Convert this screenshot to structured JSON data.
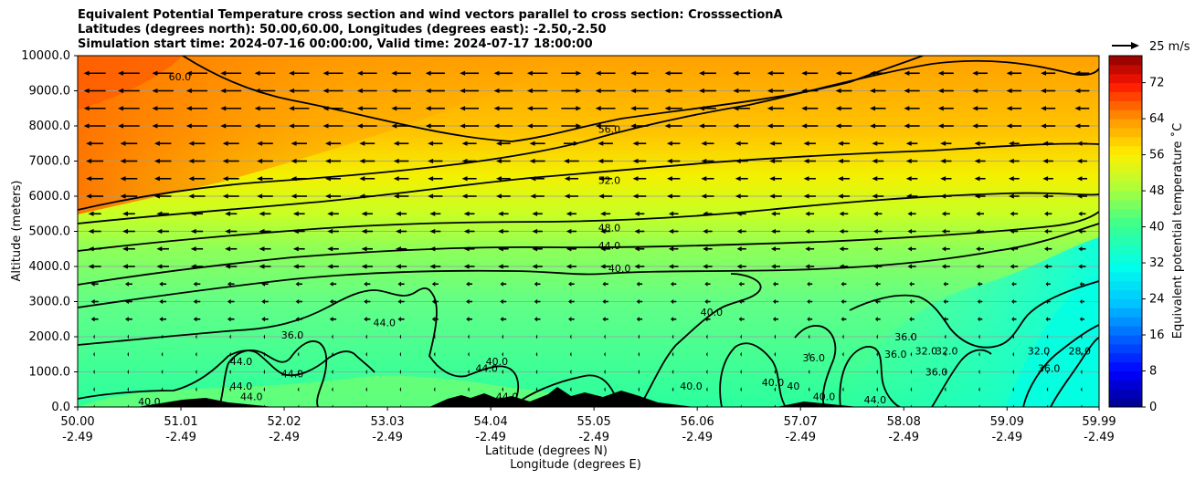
{
  "title_lines": [
    "Equivalent Potential Temperature cross section and wind vectors parallel to cross section: CrosssectionA",
    "Latitudes (degrees north): 50.00,60.00, Longitudes (degrees east): -2.50,-2.50",
    "Simulation start time: 2024-07-16 00:00:00, Valid time: 2024-07-17 18:00:00"
  ],
  "chart_data": {
    "type": "heatmap",
    "x_ticks": [
      {
        "lat": "50.00",
        "lon": "-2.49"
      },
      {
        "lat": "51.01",
        "lon": "-2.49"
      },
      {
        "lat": "52.02",
        "lon": "-2.49"
      },
      {
        "lat": "53.03",
        "lon": "-2.49"
      },
      {
        "lat": "54.04",
        "lon": "-2.49"
      },
      {
        "lat": "55.05",
        "lon": "-2.49"
      },
      {
        "lat": "56.06",
        "lon": "-2.49"
      },
      {
        "lat": "57.07",
        "lon": "-2.49"
      },
      {
        "lat": "58.08",
        "lon": "-2.49"
      },
      {
        "lat": "59.09",
        "lon": "-2.49"
      },
      {
        "lat": "59.99",
        "lon": "-2.49"
      }
    ],
    "xlabel": "Latitude (degrees N)",
    "xlabel2": "Longitude (degrees E)",
    "ylabel": "Altitude (meters)",
    "y_ticks": [
      "0.0",
      "1000.0",
      "2000.0",
      "3000.0",
      "4000.0",
      "5000.0",
      "6000.0",
      "7000.0",
      "8000.0",
      "9000.0",
      "10000.0"
    ],
    "ylim": [
      0,
      10000
    ],
    "grid": "horizontal",
    "colorbar": {
      "label": "Equivalent potential temperature ˚C",
      "range": [
        0,
        78
      ],
      "ticks": [
        "0",
        "8",
        "16",
        "24",
        "32",
        "40",
        "48",
        "56",
        "64",
        "72"
      ]
    },
    "quiver_key": "25 m/s",
    "contour_labels": [
      {
        "text": "60.0",
        "x": 51.0,
        "y": 9300
      },
      {
        "text": "56.0",
        "x": 55.2,
        "y": 7800
      },
      {
        "text": "52.0",
        "x": 55.2,
        "y": 6350
      },
      {
        "text": "48.0",
        "x": 55.2,
        "y": 5000
      },
      {
        "text": "44.0",
        "x": 55.2,
        "y": 4500
      },
      {
        "text": "40.0",
        "x": 55.3,
        "y": 3850
      },
      {
        "text": "40.0",
        "x": 56.2,
        "y": 2600
      },
      {
        "text": "44.0",
        "x": 53.0,
        "y": 2300
      },
      {
        "text": "36.0",
        "x": 52.1,
        "y": 1950
      },
      {
        "text": "44.0",
        "x": 51.6,
        "y": 1200
      },
      {
        "text": "44.0",
        "x": 52.1,
        "y": 850
      },
      {
        "text": "44.0",
        "x": 51.6,
        "y": 500
      },
      {
        "text": "40.0",
        "x": 50.7,
        "y": 50
      },
      {
        "text": "44.0",
        "x": 51.7,
        "y": 200
      },
      {
        "text": "44.0",
        "x": 54.0,
        "y": 1000
      },
      {
        "text": "40.0",
        "x": 54.1,
        "y": 1200
      },
      {
        "text": "44.0",
        "x": 54.2,
        "y": 200
      },
      {
        "text": "40.0",
        "x": 56.8,
        "y": 600
      },
      {
        "text": "40",
        "x": 57.0,
        "y": 500
      },
      {
        "text": "36.0",
        "x": 57.2,
        "y": 1300
      },
      {
        "text": "40.0",
        "x": 57.3,
        "y": 200
      },
      {
        "text": "36.0",
        "x": 58.0,
        "y": 1400
      },
      {
        "text": "36.0",
        "x": 58.1,
        "y": 1900
      },
      {
        "text": "32.0",
        "x": 58.3,
        "y": 1500
      },
      {
        "text": "32.0",
        "x": 58.5,
        "y": 1500
      },
      {
        "text": "36.0",
        "x": 58.4,
        "y": 900
      },
      {
        "text": "32.0",
        "x": 59.4,
        "y": 1500
      },
      {
        "text": "36.0",
        "x": 59.5,
        "y": 1000
      },
      {
        "text": "28.0",
        "x": 59.8,
        "y": 1500
      },
      {
        "text": "40.0",
        "x": 56.0,
        "y": 500
      },
      {
        "text": "44.0",
        "x": 57.8,
        "y": 100
      }
    ]
  }
}
